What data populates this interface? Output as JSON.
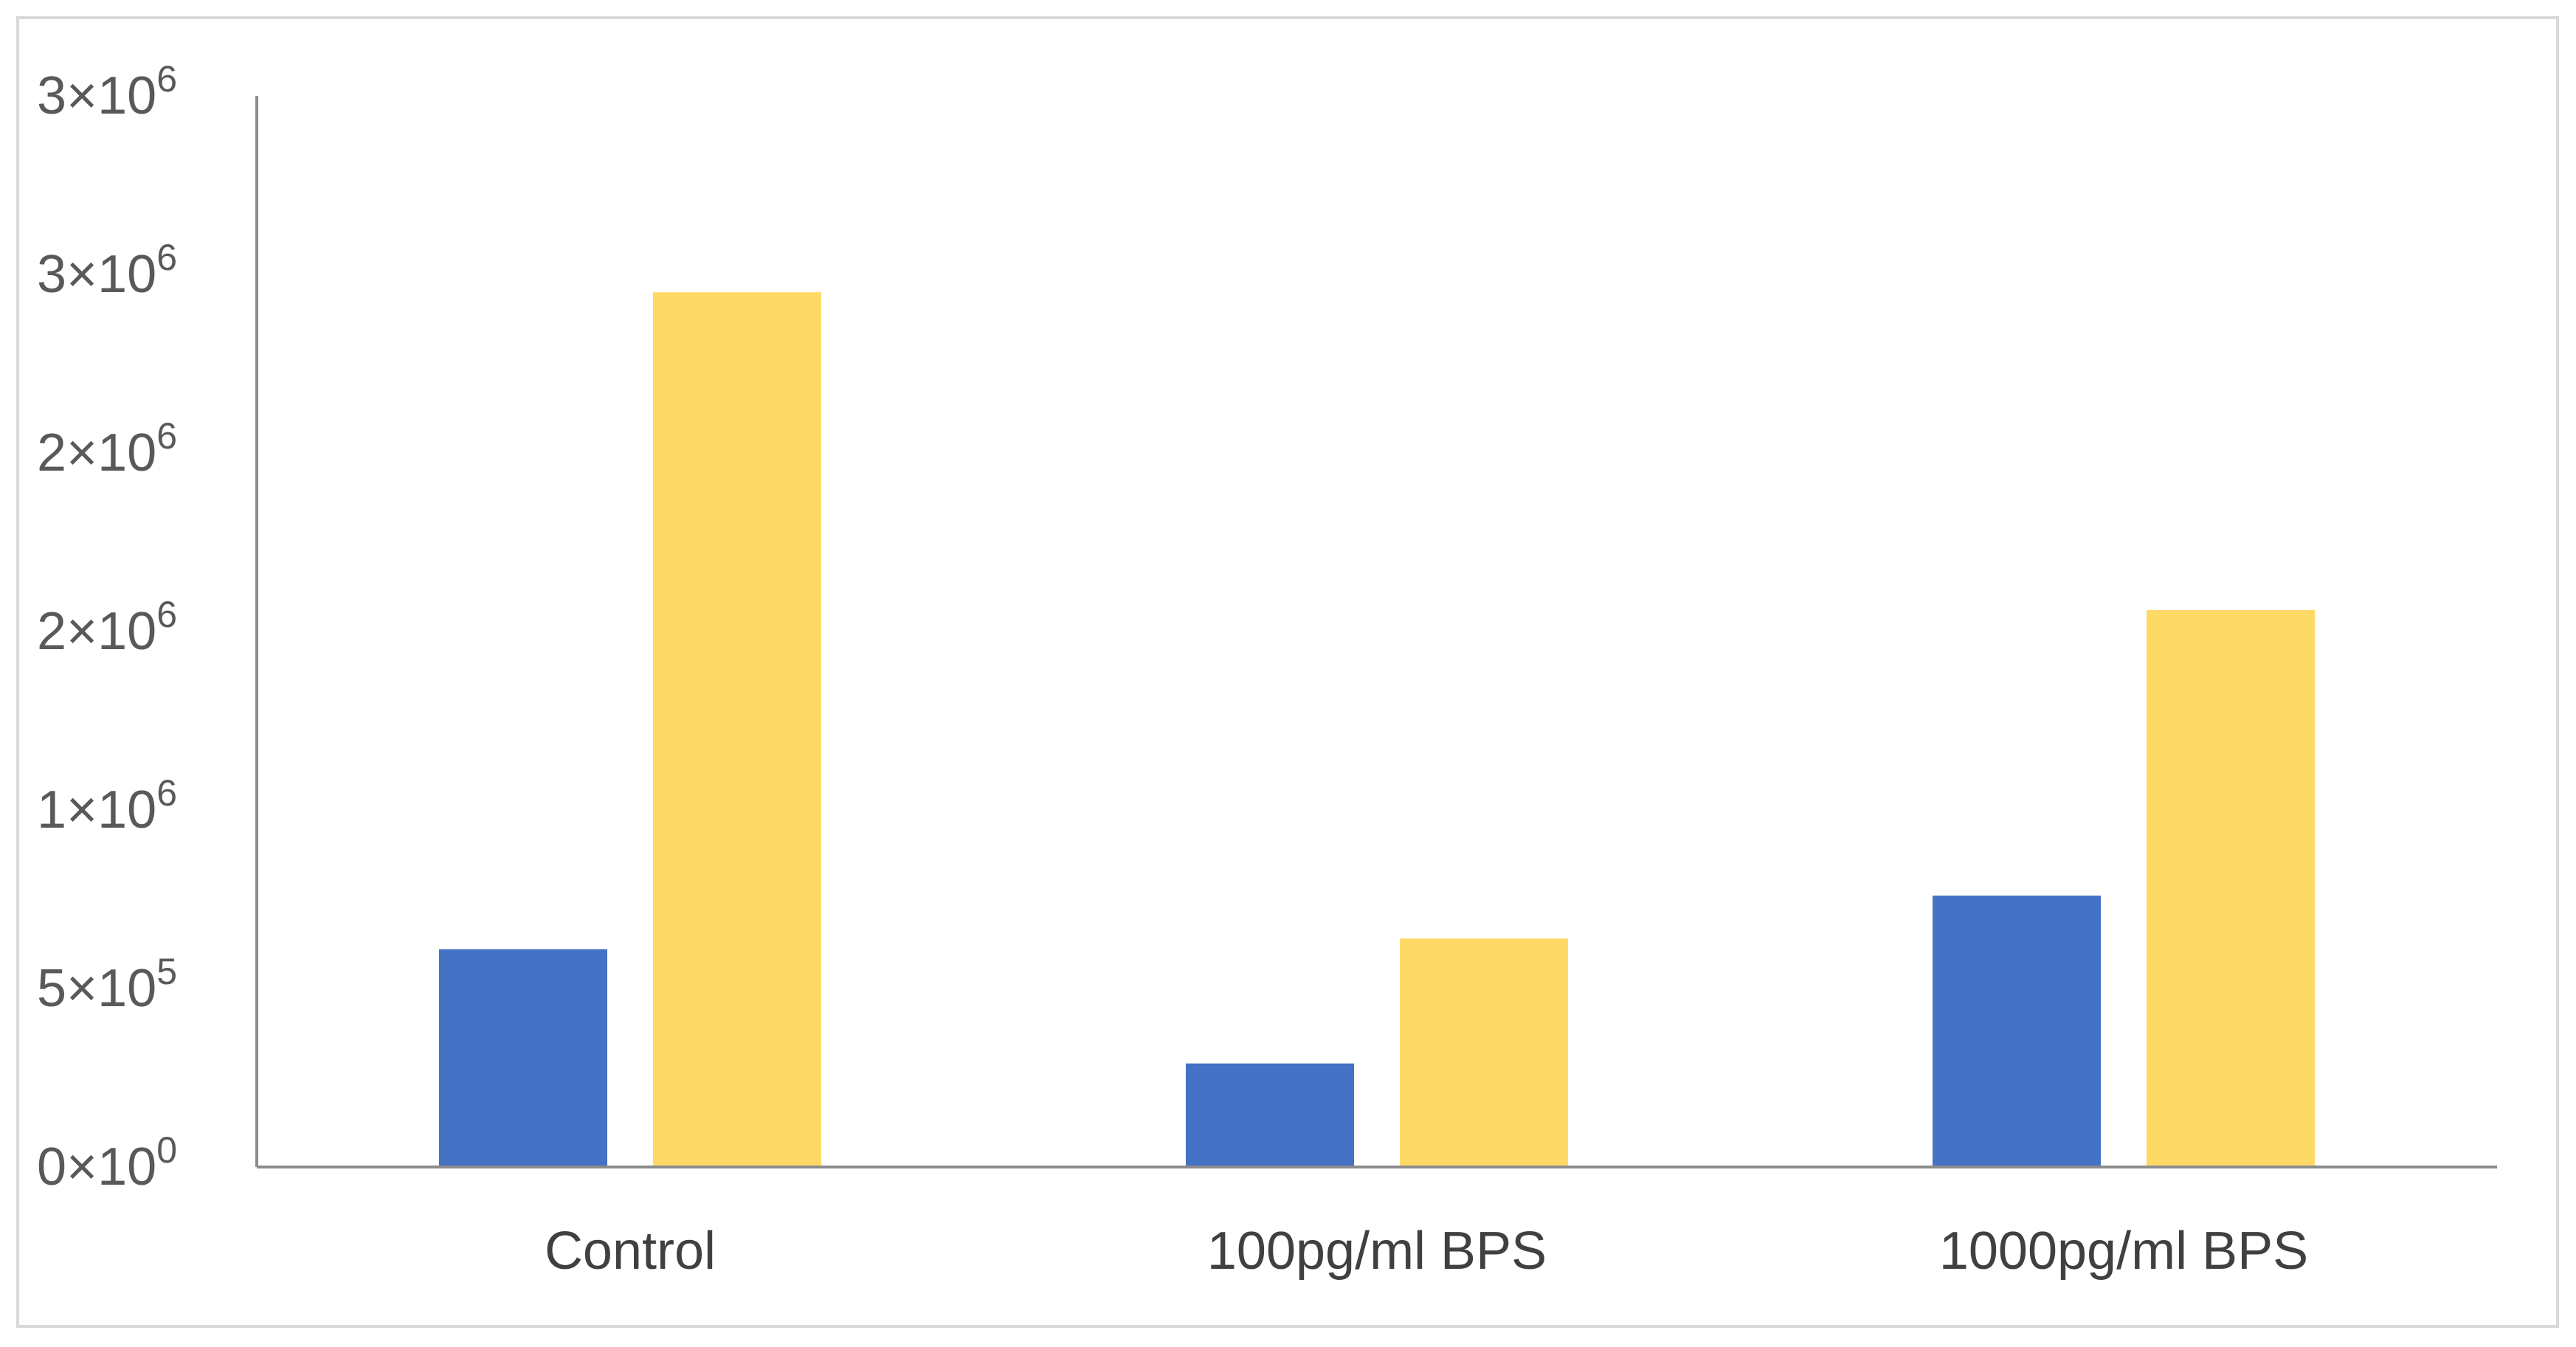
{
  "chart_data": {
    "type": "bar",
    "title": "",
    "xlabel": "",
    "ylabel": "",
    "categories": [
      "Control",
      "100pg/ml BPS",
      "1000pg/ml BPS"
    ],
    "series": [
      {
        "color": "#4472c4",
        "values": [
          610000,
          290000,
          760000
        ]
      },
      {
        "color": "#ffd966",
        "values": [
          2450000,
          640000,
          1560000
        ]
      }
    ],
    "ylim": [
      0,
      3000000
    ],
    "yticks": [
      {
        "value": 0,
        "base": "0×10",
        "exp": "0"
      },
      {
        "value": 500000,
        "base": "5×10",
        "exp": "5"
      },
      {
        "value": 1000000,
        "base": "1×10",
        "exp": "6"
      },
      {
        "value": 1500000,
        "base": "2×10",
        "exp": "6"
      },
      {
        "value": 2000000,
        "base": "2×10",
        "exp": "6"
      },
      {
        "value": 2500000,
        "base": "3×10",
        "exp": "6"
      },
      {
        "value": 3000000,
        "base": "3×10",
        "exp": "6"
      }
    ],
    "grid": false,
    "legend": "none",
    "axis_color": "#8c8c8c"
  }
}
